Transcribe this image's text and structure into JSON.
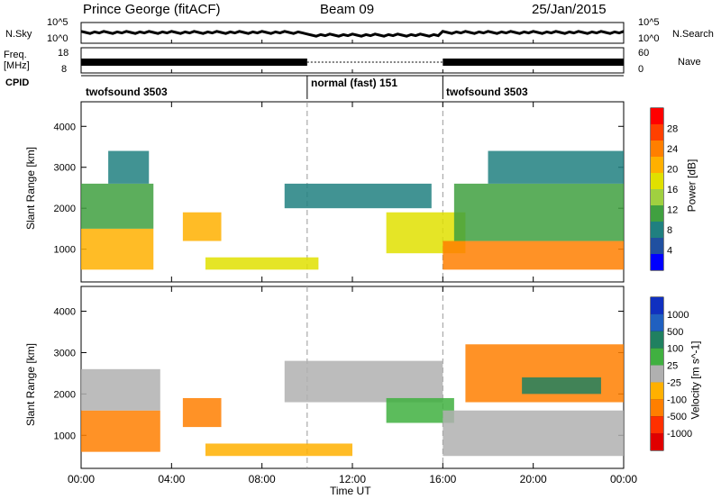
{
  "header": {
    "station": "Prince George (fitACF)",
    "beam": "Beam 09",
    "date": "25/Jan/2015"
  },
  "side_labels": {
    "nsky": "N.Sky",
    "nsearch": "N.Search",
    "freq": "Freq.",
    "mhz": "[MHz]",
    "nave": "Nave",
    "cpid": "CPID"
  },
  "noise_axis": {
    "left_top": "10^5",
    "left_bottom": "10^0",
    "right_top": "10^5",
    "right_bottom": "10^0"
  },
  "freq_axis": {
    "left_top": "18",
    "left_bottom": "8",
    "right_top": "60",
    "right_bottom": "0"
  },
  "cpid_segments": [
    {
      "label": "twofsound 3503",
      "start_hour": 0,
      "end_hour": 10
    },
    {
      "label": "normal (fast) 151",
      "start_hour": 10,
      "end_hour": 16
    },
    {
      "label": "twofsound 3503",
      "start_hour": 16,
      "end_hour": 24
    }
  ],
  "panels": {
    "power_ylabel": "Slant Range [km]",
    "velocity_ylabel": "Slant Range [km]",
    "xlabel": "Time UT"
  },
  "power_colorbar": {
    "label": "Power [dB]",
    "ticks": [
      "28",
      "24",
      "20",
      "16",
      "12",
      "8",
      "4"
    ],
    "colors": [
      "#ff0000",
      "#ff4000",
      "#ff7f00",
      "#ffb000",
      "#e0e000",
      "#a0d040",
      "#40a040",
      "#208080",
      "#2050a0",
      "#0000ff"
    ]
  },
  "velocity_colorbar": {
    "label": "Velocity [m s^-1]",
    "ticks": [
      "1000",
      "500",
      "100",
      "25",
      "-25",
      "-100",
      "-500",
      "-1000"
    ],
    "colors": [
      "#1030c0",
      "#2060c0",
      "#208060",
      "#40b040",
      "#b0b0b0",
      "#ffb000",
      "#ff7f00",
      "#ff3000",
      "#e00000"
    ]
  },
  "chart_data": [
    {
      "type": "heatmap",
      "title": "Power",
      "xlabel": "Time UT",
      "ylabel": "Slant Range [km]",
      "xlim_hours": [
        0,
        24
      ],
      "ylim_km": [
        200,
        4600
      ],
      "x_ticks": [
        "00:00",
        "04:00",
        "08:00",
        "12:00",
        "16:00",
        "20:00",
        "00:00"
      ],
      "y_ticks": [
        1000,
        2000,
        3000,
        4000
      ],
      "colorbar_range_db": [
        0,
        30
      ],
      "features": [
        {
          "t_start": 0.0,
          "t_end": 3.2,
          "r_low": 500,
          "r_high": 1500,
          "level_db": 22
        },
        {
          "t_start": 0.0,
          "t_end": 3.2,
          "r_low": 1500,
          "r_high": 2600,
          "level_db": 12
        },
        {
          "t_start": 1.2,
          "t_end": 3.0,
          "r_low": 2600,
          "r_high": 3400,
          "level_db": 10
        },
        {
          "t_start": 4.5,
          "t_end": 6.2,
          "r_low": 1200,
          "r_high": 1900,
          "level_db": 20
        },
        {
          "t_start": 5.5,
          "t_end": 10.5,
          "r_low": 500,
          "r_high": 800,
          "level_db": 18
        },
        {
          "t_start": 9.0,
          "t_end": 15.5,
          "r_low": 2000,
          "r_high": 2600,
          "level_db": 8
        },
        {
          "t_start": 13.5,
          "t_end": 17.0,
          "r_low": 900,
          "r_high": 1900,
          "level_db": 18
        },
        {
          "t_start": 16.0,
          "t_end": 24.0,
          "r_low": 500,
          "r_high": 1200,
          "level_db": 24
        },
        {
          "t_start": 16.5,
          "t_end": 24.0,
          "r_low": 1200,
          "r_high": 2600,
          "level_db": 12
        },
        {
          "t_start": 18.0,
          "t_end": 24.0,
          "r_low": 2600,
          "r_high": 3400,
          "level_db": 10
        }
      ]
    },
    {
      "type": "heatmap",
      "title": "Velocity",
      "xlabel": "Time UT",
      "ylabel": "Slant Range [km]",
      "xlim_hours": [
        0,
        24
      ],
      "ylim_km": [
        200,
        4600
      ],
      "x_ticks": [
        "00:00",
        "04:00",
        "08:00",
        "12:00",
        "16:00",
        "20:00",
        "00:00"
      ],
      "y_ticks": [
        1000,
        2000,
        3000,
        4000
      ],
      "colorbar_range_ms": [
        -1000,
        1000
      ],
      "features": [
        {
          "t_start": 0.0,
          "t_end": 3.5,
          "r_low": 600,
          "r_high": 1600,
          "velocity": -150
        },
        {
          "t_start": 0.0,
          "t_end": 3.5,
          "r_low": 1600,
          "r_high": 2600,
          "velocity": 0
        },
        {
          "t_start": 4.5,
          "t_end": 6.2,
          "r_low": 1200,
          "r_high": 1900,
          "velocity": -300
        },
        {
          "t_start": 5.5,
          "t_end": 12.0,
          "r_low": 500,
          "r_high": 800,
          "velocity": -80
        },
        {
          "t_start": 9.0,
          "t_end": 16.0,
          "r_low": 1800,
          "r_high": 2800,
          "velocity": 0
        },
        {
          "t_start": 13.5,
          "t_end": 16.5,
          "r_low": 1300,
          "r_high": 1900,
          "velocity": 80
        },
        {
          "t_start": 16.0,
          "t_end": 24.0,
          "r_low": 500,
          "r_high": 1600,
          "velocity": 0
        },
        {
          "t_start": 17.0,
          "t_end": 24.0,
          "r_low": 1800,
          "r_high": 3200,
          "velocity": -200
        },
        {
          "t_start": 19.5,
          "t_end": 23.0,
          "r_low": 2000,
          "r_high": 2400,
          "velocity": 200
        }
      ]
    }
  ]
}
